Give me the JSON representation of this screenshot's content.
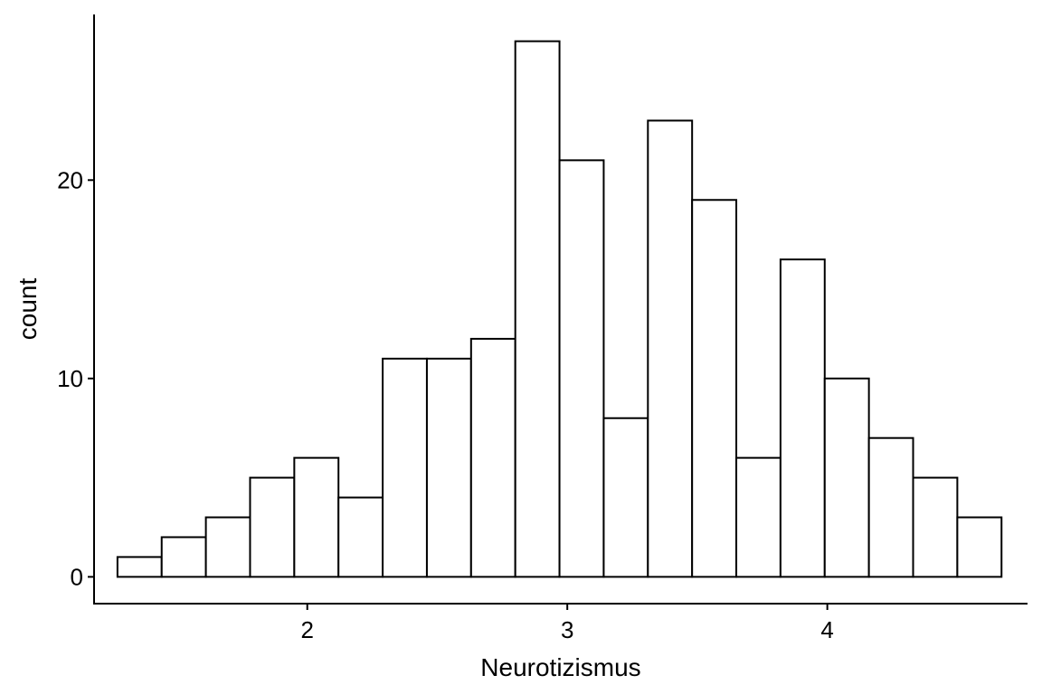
{
  "chart_data": {
    "type": "histogram",
    "xlabel": "Neurotizismus",
    "ylabel": "count",
    "bin_width": 0.17,
    "bins": [
      {
        "x0": 1.27,
        "x1": 1.44,
        "count": 1
      },
      {
        "x0": 1.44,
        "x1": 1.61,
        "count": 2
      },
      {
        "x0": 1.61,
        "x1": 1.78,
        "count": 3
      },
      {
        "x0": 1.78,
        "x1": 1.95,
        "count": 5
      },
      {
        "x0": 1.95,
        "x1": 2.12,
        "count": 6
      },
      {
        "x0": 2.12,
        "x1": 2.29,
        "count": 4
      },
      {
        "x0": 2.29,
        "x1": 2.46,
        "count": 11
      },
      {
        "x0": 2.46,
        "x1": 2.63,
        "count": 11
      },
      {
        "x0": 2.63,
        "x1": 2.8,
        "count": 12
      },
      {
        "x0": 2.8,
        "x1": 2.97,
        "count": 27
      },
      {
        "x0": 2.97,
        "x1": 3.14,
        "count": 21
      },
      {
        "x0": 3.14,
        "x1": 3.31,
        "count": 8
      },
      {
        "x0": 3.31,
        "x1": 3.48,
        "count": 23
      },
      {
        "x0": 3.48,
        "x1": 3.65,
        "count": 19
      },
      {
        "x0": 3.65,
        "x1": 3.82,
        "count": 6
      },
      {
        "x0": 3.82,
        "x1": 3.99,
        "count": 16
      },
      {
        "x0": 3.99,
        "x1": 4.16,
        "count": 10
      },
      {
        "x0": 4.16,
        "x1": 4.33,
        "count": 7
      },
      {
        "x0": 4.33,
        "x1": 4.5,
        "count": 5
      },
      {
        "x0": 4.5,
        "x1": 4.67,
        "count": 3
      }
    ],
    "xticks": [
      2,
      3,
      4
    ],
    "yticks": [
      0,
      10,
      20
    ],
    "xlim": [
      1.18,
      4.77
    ],
    "ylim": [
      -1.35,
      28.35
    ],
    "bar_fill": "#ffffff",
    "bar_stroke": "#000000",
    "grid": false
  }
}
